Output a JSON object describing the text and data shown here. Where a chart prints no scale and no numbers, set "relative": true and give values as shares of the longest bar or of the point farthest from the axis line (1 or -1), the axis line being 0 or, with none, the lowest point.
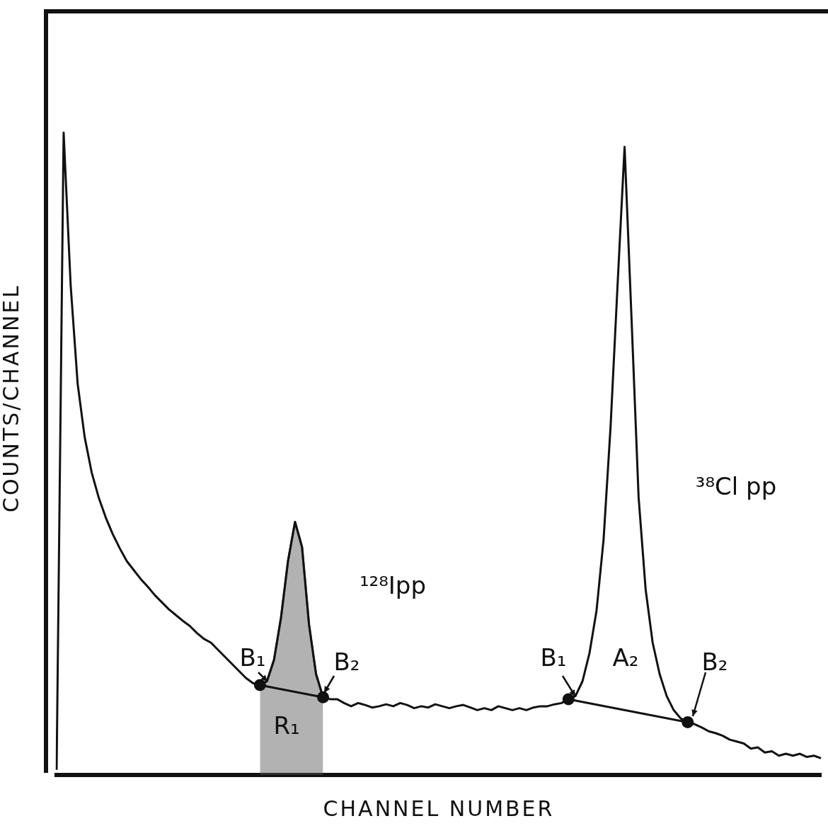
{
  "chart_data": {
    "type": "line",
    "relative": true,
    "tick_labels": false,
    "xlabel": "CHANNEL NUMBER",
    "ylabel": "COUNTS/CHANNEL",
    "categories": [
      null,
      null,
      null,
      null,
      null,
      null,
      null,
      null,
      null,
      null,
      null,
      null,
      null,
      null,
      null,
      null,
      null,
      null,
      null,
      null,
      null,
      null,
      null,
      null,
      null,
      null,
      null,
      null,
      null,
      null,
      null,
      null,
      null,
      null,
      null,
      null,
      null,
      null,
      null,
      null,
      null,
      null,
      null,
      null,
      null,
      null,
      null,
      null,
      null,
      null,
      null,
      null,
      null,
      null,
      null,
      null,
      null,
      null,
      null,
      null,
      null,
      null,
      null,
      null,
      null,
      null,
      null,
      null,
      null,
      null,
      null,
      null,
      null,
      null,
      null,
      null,
      null,
      null,
      null,
      null,
      null,
      null,
      null,
      null,
      null,
      null,
      null,
      null,
      null,
      null,
      null,
      null,
      null,
      null,
      null,
      null,
      null,
      null,
      null,
      null,
      null,
      null,
      null,
      null,
      null,
      null,
      null,
      null,
      null,
      null
    ],
    "series": [
      {
        "type": "area",
        "color": "#555555",
        "values": [
          null,
          null,
          null,
          null,
          null,
          null,
          null,
          null,
          null,
          null,
          null,
          null,
          null,
          null,
          null,
          null,
          null,
          null,
          null,
          null,
          null,
          null,
          null,
          null,
          null,
          null,
          null,
          null,
          null,
          0.14,
          0.146,
          0.179,
          0.245,
          0.333,
          0.394,
          0.355,
          0.234,
          0.157,
          0.121,
          null,
          null,
          null,
          null,
          null,
          null,
          null,
          null,
          null,
          null,
          null,
          null,
          null,
          null,
          null,
          null,
          null,
          null,
          null,
          null,
          null,
          null,
          null,
          null,
          null,
          null,
          null,
          null,
          null,
          null,
          null,
          null,
          null,
          null,
          null,
          null,
          null,
          null,
          null,
          null,
          null,
          null,
          null,
          null,
          null,
          null,
          null,
          null,
          null,
          null,
          null,
          null,
          null,
          null,
          null,
          null,
          null,
          null,
          null,
          null,
          null,
          null,
          null,
          null,
          null,
          null,
          null,
          null,
          null,
          null,
          null
        ]
      },
      {
        "color": "#111111",
        "values": [
          0.008,
          1.0,
          0.763,
          0.609,
          0.526,
          0.471,
          0.432,
          0.401,
          0.375,
          0.353,
          0.333,
          0.319,
          0.305,
          0.293,
          0.28,
          0.269,
          0.258,
          0.249,
          0.24,
          0.232,
          0.221,
          0.212,
          0.206,
          0.195,
          0.184,
          0.173,
          0.162,
          0.151,
          0.143,
          0.14,
          0.146,
          0.179,
          0.245,
          0.333,
          0.394,
          0.355,
          0.234,
          0.157,
          0.121,
          0.118,
          0.118,
          0.112,
          0.107,
          0.112,
          0.109,
          0.105,
          0.107,
          0.11,
          0.107,
          0.112,
          0.109,
          0.104,
          0.107,
          0.105,
          0.11,
          0.107,
          0.104,
          0.107,
          0.109,
          0.105,
          0.101,
          0.104,
          0.101,
          0.107,
          0.104,
          0.101,
          0.104,
          0.101,
          0.105,
          0.107,
          0.107,
          0.11,
          0.112,
          0.118,
          0.123,
          0.146,
          0.19,
          0.256,
          0.366,
          0.542,
          0.763,
          0.978,
          0.708,
          0.432,
          0.289,
          0.206,
          0.157,
          0.123,
          0.101,
          0.088,
          0.082,
          0.079,
          0.074,
          0.068,
          0.065,
          0.061,
          0.055,
          0.052,
          0.049,
          0.041,
          0.043,
          0.035,
          0.037,
          0.03,
          0.033,
          0.03,
          0.033,
          0.028,
          0.03,
          0.026
        ]
      },
      {
        "type": "line",
        "color": "#111111",
        "marker": "circle",
        "values": [
          null,
          null,
          null,
          null,
          null,
          null,
          null,
          null,
          null,
          null,
          null,
          null,
          null,
          null,
          null,
          null,
          null,
          null,
          null,
          null,
          null,
          null,
          null,
          null,
          null,
          null,
          null,
          null,
          null,
          0.14,
          null,
          null,
          null,
          null,
          null,
          null,
          null,
          null,
          0.121,
          null,
          null,
          null,
          null,
          null,
          null,
          null,
          null,
          null,
          null,
          null,
          null,
          null,
          null,
          null,
          null,
          null,
          null,
          null,
          null,
          null,
          null,
          null,
          null,
          null,
          null,
          null,
          null,
          null,
          null,
          null,
          null,
          null,
          null,
          null,
          null,
          null,
          null,
          null,
          null,
          null,
          null,
          null,
          null,
          null,
          null,
          null,
          null,
          null,
          null,
          null,
          null,
          null,
          null,
          null,
          null,
          null,
          null,
          null,
          null,
          null,
          null,
          null,
          null,
          null,
          null,
          null,
          null,
          null,
          null,
          null
        ]
      },
      {
        "type": "line",
        "color": "#111111",
        "marker": "circle",
        "values": [
          null,
          null,
          null,
          null,
          null,
          null,
          null,
          null,
          null,
          null,
          null,
          null,
          null,
          null,
          null,
          null,
          null,
          null,
          null,
          null,
          null,
          null,
          null,
          null,
          null,
          null,
          null,
          null,
          null,
          null,
          null,
          null,
          null,
          null,
          null,
          null,
          null,
          null,
          null,
          null,
          null,
          null,
          null,
          null,
          null,
          null,
          null,
          null,
          null,
          null,
          null,
          null,
          null,
          null,
          null,
          null,
          null,
          null,
          null,
          null,
          null,
          null,
          null,
          null,
          null,
          null,
          null,
          null,
          null,
          null,
          null,
          null,
          null,
          0.118,
          null,
          null,
          null,
          null,
          null,
          null,
          null,
          null,
          null,
          null,
          null,
          null,
          null,
          null,
          null,
          null,
          0.082,
          null,
          null,
          null,
          null,
          null,
          null,
          null,
          null,
          null,
          null,
          null,
          null,
          null,
          null,
          null,
          null,
          null,
          null,
          null
        ]
      }
    ],
    "annotations": [
      "B₁",
      "B₂",
      "R₁",
      "¹²⁸Ipp",
      "B₁",
      "A₂",
      "B₂",
      "³⁸Cl pp"
    ]
  }
}
